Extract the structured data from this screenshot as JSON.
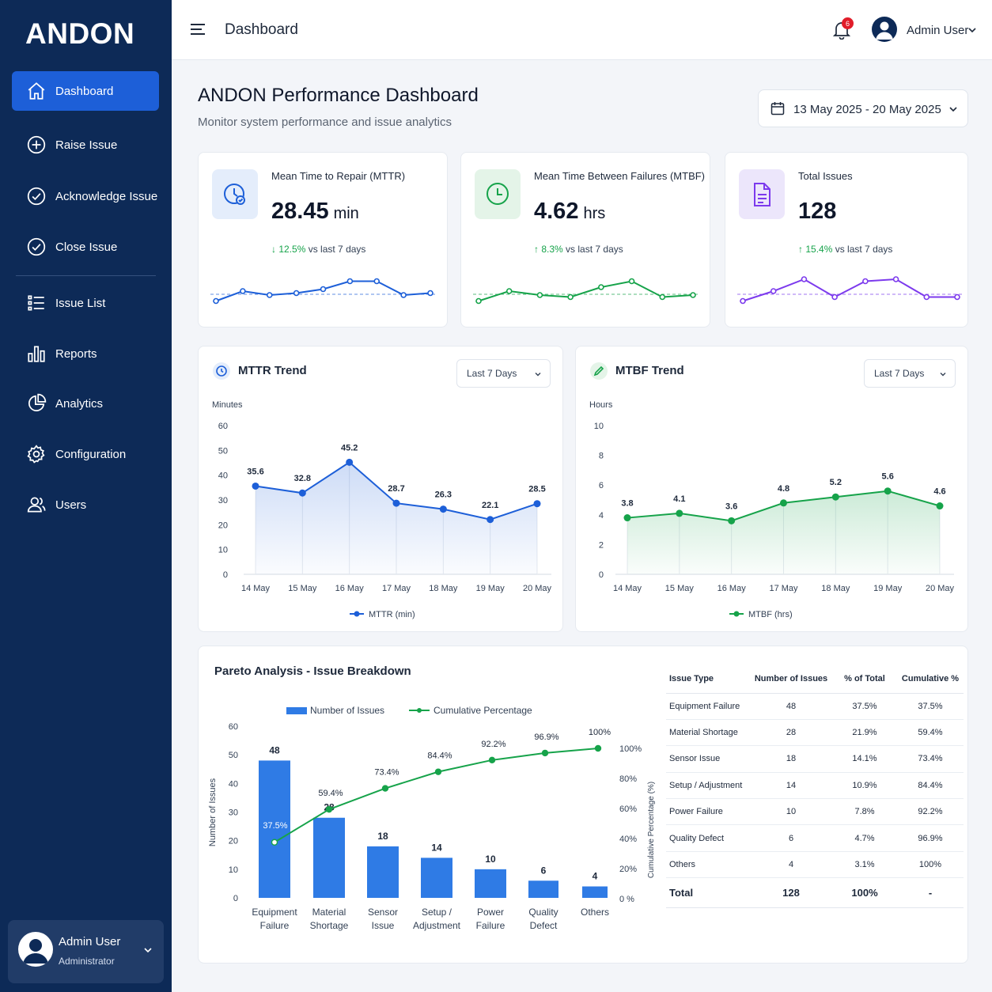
{
  "sidebar": {
    "logo": "ANDON",
    "items": [
      {
        "label": "Dashboard",
        "icon": "home-icon",
        "active": true
      },
      {
        "label": "Raise Issue",
        "icon": "plus-circle-icon"
      },
      {
        "label": "Acknowledge Issue",
        "icon": "check-circle-icon"
      },
      {
        "label": "Close Issue",
        "icon": "check-circle-icon"
      },
      {
        "label": "Issue List",
        "icon": "list-icon"
      },
      {
        "label": "Reports",
        "icon": "bar-chart-icon"
      },
      {
        "label": "Analytics",
        "icon": "pie-chart-icon"
      },
      {
        "label": "Configuration",
        "icon": "gear-icon"
      },
      {
        "label": "Users",
        "icon": "users-icon"
      }
    ],
    "profile": {
      "name": "Admin User",
      "role": "Administrator"
    }
  },
  "topbar": {
    "title": "Dashboard",
    "notification_count": "6",
    "user": "Admin User"
  },
  "header": {
    "title": "ANDON Performance Dashboard",
    "subtitle": "Monitor system performance and issue analytics",
    "date_range": "13 May 2025 - 20 May 2025"
  },
  "kpis": [
    {
      "label": "Mean Time to Repair (MTTR)",
      "value": "28.45",
      "unit": "min",
      "delta": "12.5%",
      "delta_dir": "down",
      "compare": "vs last 7 days",
      "color": "#1d5fd8",
      "icon_bg": "#e4edfb"
    },
    {
      "label": "Mean Time Between Failures (MTBF)",
      "value": "4.62",
      "unit": "hrs",
      "delta": "8.3%",
      "delta_dir": "up",
      "compare": "vs last 7 days",
      "color": "#16a34a",
      "icon_bg": "#e4f4e8"
    },
    {
      "label": "Total Issues",
      "value": "128",
      "unit": "",
      "delta": "15.4%",
      "delta_dir": "up",
      "compare": "vs last 7 days",
      "color": "#7c3aed",
      "icon_bg": "#ece6fb"
    }
  ],
  "mttr_chart": {
    "title": "MTTR Trend",
    "filter": "Last 7 Days",
    "legend": "MTTR (min)"
  },
  "mtbf_chart": {
    "title": "MTBF Trend",
    "filter": "Last 7 Days",
    "legend": "MTBF (hrs)"
  },
  "pareto": {
    "title": "Pareto Analysis - Issue Breakdown",
    "legend_bar": "Number of Issues",
    "legend_line": "Cumulative Percentage",
    "table": {
      "headers": [
        "Issue Type",
        "Number of Issues",
        "% of Total",
        "Cumulative %"
      ],
      "rows": [
        [
          "Equipment Failure",
          "48",
          "37.5%",
          "37.5%"
        ],
        [
          "Material Shortage",
          "28",
          "21.9%",
          "59.4%"
        ],
        [
          "Sensor Issue",
          "18",
          "14.1%",
          "73.4%"
        ],
        [
          "Setup / Adjustment",
          "14",
          "10.9%",
          "84.4%"
        ],
        [
          "Power Failure",
          "10",
          "7.8%",
          "92.2%"
        ],
        [
          "Quality Defect",
          "6",
          "4.7%",
          "96.9%"
        ],
        [
          "Others",
          "4",
          "3.1%",
          "100%"
        ]
      ],
      "total": [
        "Total",
        "128",
        "100%",
        "-"
      ]
    }
  },
  "chart_data": [
    {
      "type": "line",
      "title": "MTTR Trend",
      "ylabel": "Minutes",
      "x": [
        "14 May",
        "15 May",
        "16 May",
        "17 May",
        "18 May",
        "19 May",
        "20 May"
      ],
      "series": [
        {
          "name": "MTTR (min)",
          "values": [
            35.6,
            32.8,
            45.2,
            28.7,
            26.3,
            22.1,
            28.5
          ],
          "color": "#1d5fd8"
        }
      ],
      "yticks": [
        0,
        10,
        20,
        30,
        40,
        50,
        60
      ],
      "ylim": [
        0,
        60
      ]
    },
    {
      "type": "line",
      "title": "MTBF Trend",
      "ylabel": "Hours",
      "x": [
        "14 May",
        "15 May",
        "16 May",
        "17 May",
        "18 May",
        "19 May",
        "20 May"
      ],
      "series": [
        {
          "name": "MTBF (hrs)",
          "values": [
            3.8,
            4.1,
            3.6,
            4.8,
            5.2,
            5.6,
            4.6
          ],
          "color": "#16a34a"
        }
      ],
      "yticks": [
        0,
        2,
        4,
        6,
        8,
        10
      ],
      "ylim": [
        0,
        10
      ]
    },
    {
      "type": "bar",
      "title": "Pareto Analysis - Issue Breakdown",
      "categories": [
        [
          "Equipment",
          "Failure"
        ],
        [
          "Material",
          "Shortage"
        ],
        [
          "Sensor",
          "Issue"
        ],
        [
          "Setup /",
          "Adjustment"
        ],
        [
          "Power",
          "Failure"
        ],
        [
          "Quality",
          "Defect"
        ],
        [
          "Others"
        ]
      ],
      "ylabel": "Number of Issues",
      "y2label": "Cumulative Percentage (%)",
      "series": [
        {
          "name": "Number of Issues",
          "values": [
            48,
            28,
            18,
            14,
            10,
            6,
            4
          ],
          "color": "#2f7be5"
        },
        {
          "name": "Cumulative Percentage",
          "values": [
            37.5,
            59.4,
            73.4,
            84.4,
            92.2,
            96.9,
            100
          ],
          "labels": [
            "37.5%",
            "59.4%",
            "73.4%",
            "84.4%",
            "92.2%",
            "96.9%",
            "100%"
          ],
          "color": "#16a34a"
        }
      ],
      "yticks": [
        0,
        10,
        20,
        30,
        40,
        50,
        60
      ],
      "y2ticks": [
        "0 %",
        "20%",
        "40%",
        "60%",
        "80%",
        "100%"
      ],
      "ylim": [
        0,
        60
      ],
      "y2lim": [
        0,
        100
      ]
    }
  ],
  "sparklines": [
    {
      "values": [
        3,
        8,
        6,
        7,
        9,
        13,
        13,
        6,
        7
      ],
      "color": "#1d5fd8"
    },
    {
      "values": [
        3,
        8,
        6,
        5,
        10,
        13,
        5,
        6
      ],
      "color": "#16a34a"
    },
    {
      "values": [
        3,
        8,
        14,
        5,
        13,
        14,
        5,
        5
      ],
      "color": "#7c3aed"
    }
  ]
}
